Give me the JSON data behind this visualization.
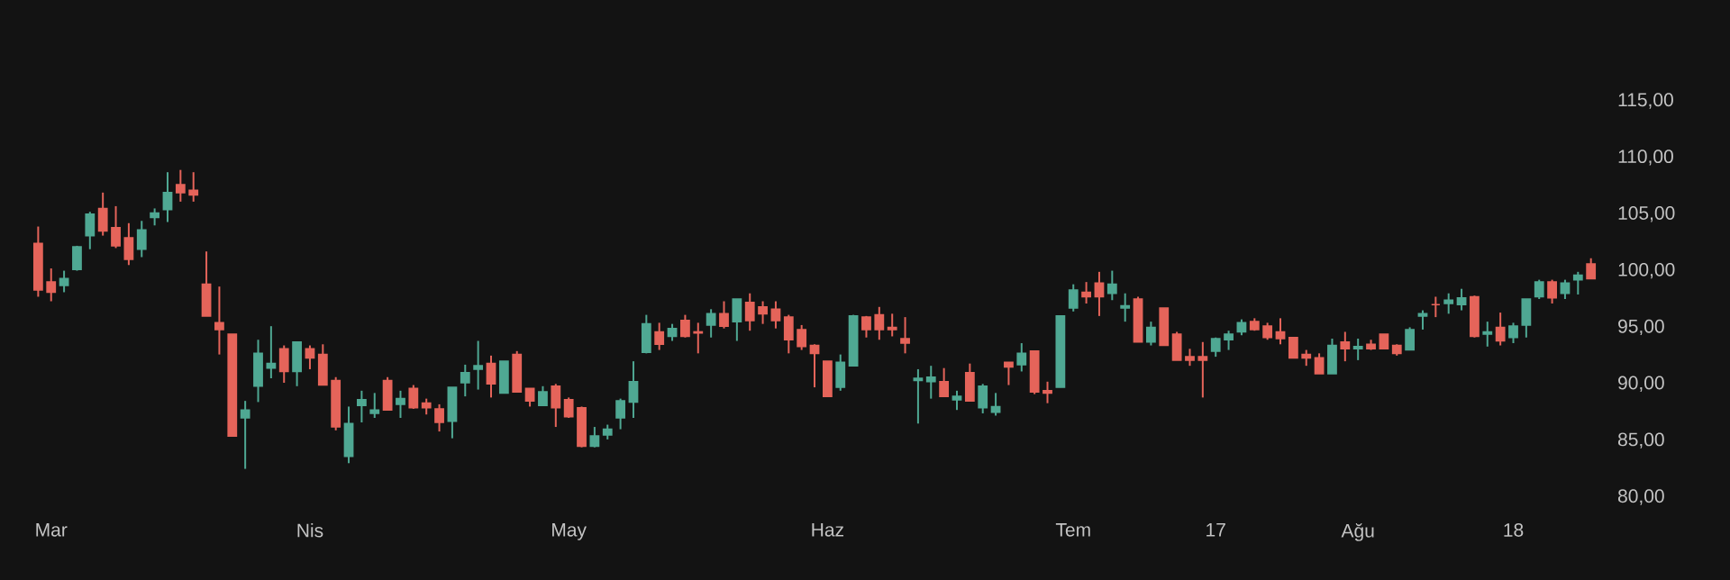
{
  "chart_data": {
    "type": "candlestick",
    "categories": [
      null,
      "Mar",
      null,
      null,
      null,
      null,
      null,
      null,
      null,
      null,
      null,
      null,
      null,
      null,
      null,
      null,
      null,
      null,
      null,
      null,
      null,
      "Nis",
      null,
      null,
      null,
      null,
      null,
      null,
      null,
      null,
      null,
      null,
      null,
      null,
      null,
      null,
      null,
      null,
      null,
      null,
      null,
      "May",
      null,
      null,
      null,
      null,
      null,
      null,
      null,
      null,
      null,
      null,
      null,
      null,
      null,
      null,
      null,
      null,
      null,
      null,
      null,
      "Haz",
      null,
      null,
      null,
      null,
      null,
      null,
      null,
      null,
      null,
      null,
      null,
      null,
      null,
      null,
      null,
      null,
      null,
      null,
      "Tem",
      null,
      null,
      null,
      null,
      null,
      null,
      null,
      null,
      null,
      null,
      "17",
      null,
      null,
      null,
      null,
      null,
      null,
      null,
      null,
      null,
      null,
      "Ağu",
      null,
      null,
      null,
      null,
      null,
      null,
      null,
      null,
      null,
      null,
      null,
      "18",
      null,
      null,
      null,
      null,
      null,
      null
    ],
    "ohlc": [
      [
        102.4,
        103.9,
        97.7,
        98.3
      ],
      [
        99.0,
        100.2,
        97.3,
        98.1
      ],
      [
        98.7,
        100.0,
        98.1,
        99.3
      ],
      [
        100.1,
        102.2,
        100.0,
        102.1
      ],
      [
        103.1,
        105.2,
        101.9,
        105.0
      ],
      [
        105.5,
        106.9,
        103.1,
        103.5
      ],
      [
        103.8,
        105.7,
        102.0,
        102.2
      ],
      [
        102.9,
        104.2,
        100.5,
        101.0
      ],
      [
        101.9,
        104.4,
        101.2,
        103.6
      ],
      [
        104.7,
        105.5,
        104.0,
        105.1
      ],
      [
        105.4,
        108.7,
        104.3,
        106.9
      ],
      [
        107.6,
        108.9,
        106.1,
        106.9
      ],
      [
        107.1,
        108.7,
        106.1,
        106.7
      ],
      [
        98.8,
        101.7,
        96.0,
        96.0
      ],
      [
        95.4,
        98.6,
        92.6,
        94.8
      ],
      [
        94.4,
        94.4,
        85.4,
        85.4
      ],
      [
        87.0,
        88.5,
        82.5,
        87.7
      ],
      [
        89.8,
        93.9,
        88.4,
        92.7
      ],
      [
        91.4,
        95.1,
        90.5,
        91.8
      ],
      [
        93.1,
        93.4,
        90.1,
        91.1
      ],
      [
        91.1,
        93.7,
        89.8,
        93.7
      ],
      [
        93.1,
        93.4,
        91.3,
        92.3
      ],
      [
        92.6,
        93.5,
        89.9,
        89.9
      ],
      [
        90.3,
        90.6,
        85.9,
        86.2
      ],
      [
        83.6,
        88.0,
        83.0,
        86.5
      ],
      [
        88.1,
        89.4,
        86.6,
        88.6
      ],
      [
        87.4,
        89.2,
        87.0,
        87.7
      ],
      [
        90.3,
        90.6,
        87.7,
        87.7
      ],
      [
        88.2,
        89.4,
        87.0,
        88.7
      ],
      [
        89.6,
        89.9,
        87.8,
        87.9
      ],
      [
        88.3,
        88.7,
        87.3,
        87.9
      ],
      [
        87.8,
        88.2,
        85.8,
        86.6
      ],
      [
        86.7,
        89.7,
        85.2,
        89.7
      ],
      [
        90.1,
        91.7,
        88.9,
        91.0
      ],
      [
        91.3,
        93.8,
        89.5,
        91.6
      ],
      [
        91.8,
        92.5,
        88.8,
        90.0
      ],
      [
        89.2,
        92.0,
        89.2,
        92.0
      ],
      [
        92.6,
        92.9,
        89.3,
        89.3
      ],
      [
        89.6,
        89.6,
        88.0,
        88.5
      ],
      [
        88.1,
        89.8,
        88.1,
        89.3
      ],
      [
        89.8,
        90.0,
        86.2,
        87.9
      ],
      [
        88.6,
        88.8,
        87.0,
        87.1
      ],
      [
        87.9,
        88.0,
        84.4,
        84.5
      ],
      [
        84.5,
        86.2,
        84.4,
        85.4
      ],
      [
        85.5,
        86.4,
        85.1,
        86.0
      ],
      [
        87.0,
        88.7,
        86.0,
        88.5
      ],
      [
        88.4,
        92.0,
        87.0,
        90.2
      ],
      [
        92.8,
        96.1,
        92.7,
        95.3
      ],
      [
        94.6,
        95.4,
        93.0,
        93.5
      ],
      [
        94.2,
        95.3,
        93.8,
        94.9
      ],
      [
        95.6,
        96.1,
        94.1,
        94.2
      ],
      [
        94.6,
        95.4,
        92.7,
        94.5
      ],
      [
        95.2,
        96.6,
        94.1,
        96.2
      ],
      [
        96.2,
        97.3,
        94.9,
        95.1
      ],
      [
        95.5,
        97.5,
        93.8,
        97.5
      ],
      [
        97.2,
        98.0,
        94.7,
        95.6
      ],
      [
        96.8,
        97.3,
        95.3,
        96.2
      ],
      [
        96.6,
        97.3,
        94.9,
        95.6
      ],
      [
        95.9,
        96.1,
        92.7,
        93.9
      ],
      [
        94.8,
        95.2,
        93.0,
        93.3
      ],
      [
        93.4,
        93.5,
        89.7,
        92.7
      ],
      [
        92.0,
        92.0,
        88.9,
        88.9
      ],
      [
        89.7,
        92.6,
        89.4,
        91.9
      ],
      [
        91.6,
        96.1,
        91.6,
        96.0
      ],
      [
        95.9,
        96.0,
        94.1,
        94.8
      ],
      [
        96.1,
        96.8,
        93.9,
        94.8
      ],
      [
        95.0,
        96.2,
        94.2,
        94.8
      ],
      [
        94.0,
        95.9,
        92.7,
        93.6
      ],
      [
        90.3,
        91.3,
        86.5,
        90.5
      ],
      [
        90.2,
        91.6,
        88.7,
        90.6
      ],
      [
        90.2,
        91.4,
        88.9,
        88.9
      ],
      [
        88.6,
        89.4,
        87.7,
        88.9
      ],
      [
        91.0,
        91.8,
        88.5,
        88.5
      ],
      [
        87.9,
        90.0,
        87.4,
        89.8
      ],
      [
        87.5,
        89.2,
        87.2,
        88.0
      ],
      [
        91.9,
        91.9,
        89.9,
        91.5
      ],
      [
        91.7,
        93.6,
        91.1,
        92.7
      ],
      [
        92.9,
        92.9,
        89.1,
        89.3
      ],
      [
        89.4,
        90.2,
        88.3,
        89.2
      ],
      [
        89.7,
        96.0,
        89.7,
        96.0
      ],
      [
        96.7,
        98.8,
        96.4,
        98.3
      ],
      [
        98.1,
        99.0,
        97.1,
        97.7
      ],
      [
        98.9,
        99.9,
        96.0,
        97.7
      ],
      [
        98.0,
        100.0,
        97.4,
        98.8
      ],
      [
        96.7,
        98.0,
        95.5,
        96.9
      ],
      [
        97.5,
        97.7,
        93.7,
        93.7
      ],
      [
        93.7,
        95.5,
        93.4,
        95.0
      ],
      [
        96.7,
        96.7,
        93.4,
        93.4
      ],
      [
        94.4,
        94.6,
        92.1,
        92.1
      ],
      [
        92.4,
        93.1,
        91.6,
        92.1
      ],
      [
        92.4,
        93.7,
        88.8,
        92.1
      ],
      [
        92.9,
        94.1,
        92.4,
        94.0
      ],
      [
        93.9,
        94.7,
        93.0,
        94.4
      ],
      [
        94.6,
        95.7,
        94.3,
        95.4
      ],
      [
        95.5,
        95.8,
        94.7,
        94.8
      ],
      [
        95.1,
        95.4,
        93.9,
        94.1
      ],
      [
        94.6,
        95.8,
        93.5,
        94.0
      ],
      [
        94.1,
        94.1,
        92.3,
        92.3
      ],
      [
        92.6,
        93.0,
        91.6,
        92.3
      ],
      [
        92.3,
        92.7,
        90.9,
        90.9
      ],
      [
        90.9,
        94.0,
        90.9,
        93.4
      ],
      [
        93.7,
        94.6,
        92.0,
        93.1
      ],
      [
        93.1,
        94.0,
        92.1,
        93.3
      ],
      [
        93.5,
        93.9,
        93.0,
        93.1
      ],
      [
        94.4,
        94.4,
        93.1,
        93.1
      ],
      [
        93.4,
        93.5,
        92.5,
        92.7
      ],
      [
        93.0,
        95.0,
        93.0,
        94.8
      ],
      [
        96.0,
        96.5,
        94.8,
        96.2
      ],
      [
        97.0,
        97.7,
        95.9,
        97.0
      ],
      [
        97.1,
        98.0,
        96.2,
        97.4
      ],
      [
        97.0,
        98.4,
        96.5,
        97.6
      ],
      [
        97.7,
        97.8,
        94.1,
        94.2
      ],
      [
        94.4,
        95.5,
        93.3,
        94.6
      ],
      [
        95.0,
        96.3,
        93.4,
        93.8
      ],
      [
        94.1,
        95.4,
        93.6,
        95.1
      ],
      [
        95.2,
        97.5,
        94.1,
        97.5
      ],
      [
        97.7,
        99.2,
        97.5,
        99.0
      ],
      [
        99.0,
        99.2,
        97.1,
        97.6
      ],
      [
        98.0,
        99.2,
        97.5,
        98.9
      ],
      [
        99.2,
        99.9,
        97.9,
        99.6
      ],
      [
        100.6,
        101.1,
        99.3,
        99.3
      ]
    ],
    "colors": [
      "#e5645a",
      "#e5645a",
      "#4fa893",
      "#4fa893",
      "#4fa893",
      "#e5645a",
      "#e5645a",
      "#e5645a",
      "#4fa893",
      "#4fa893",
      "#4fa893",
      "#e5645a",
      "#e5645a",
      "#e5645a",
      "#e5645a",
      "#e5645a",
      "#4fa893",
      "#4fa893",
      "#4fa893",
      "#e5645a",
      "#4fa893",
      "#e5645a",
      "#e5645a",
      "#e5645a",
      "#4fa893",
      "#4fa893",
      "#4fa893",
      "#e5645a",
      "#4fa893",
      "#e5645a",
      "#e5645a",
      "#e5645a",
      "#4fa893",
      "#4fa893",
      "#4fa893",
      "#e5645a",
      "#4fa893",
      "#e5645a",
      "#e5645a",
      "#4fa893",
      "#e5645a",
      "#e5645a",
      "#e5645a",
      "#4fa893",
      "#4fa893",
      "#4fa893",
      "#4fa893",
      "#4fa893",
      "#e5645a",
      "#4fa893",
      "#e5645a",
      "#e5645a",
      "#4fa893",
      "#e5645a",
      "#4fa893",
      "#e5645a",
      "#e5645a",
      "#e5645a",
      "#e5645a",
      "#e5645a",
      "#e5645a",
      "#e5645a",
      "#4fa893",
      "#4fa893",
      "#e5645a",
      "#e5645a",
      "#e5645a",
      "#e5645a",
      "#4fa893",
      "#4fa893",
      "#e5645a",
      "#4fa893",
      "#e5645a",
      "#4fa893",
      "#4fa893",
      "#e5645a",
      "#4fa893",
      "#e5645a",
      "#e5645a",
      "#4fa893",
      "#4fa893",
      "#e5645a",
      "#e5645a",
      "#4fa893",
      "#4fa893",
      "#e5645a",
      "#4fa893",
      "#e5645a",
      "#e5645a",
      "#e5645a",
      "#e5645a",
      "#4fa893",
      "#4fa893",
      "#4fa893",
      "#e5645a",
      "#e5645a",
      "#e5645a",
      "#e5645a",
      "#e5645a",
      "#e5645a",
      "#4fa893",
      "#e5645a",
      "#4fa893",
      "#e5645a",
      "#e5645a",
      "#e5645a",
      "#4fa893",
      "#4fa893",
      "#e5645a",
      "#4fa893",
      "#4fa893",
      "#e5645a",
      "#4fa893",
      "#e5645a",
      "#4fa893",
      "#4fa893",
      "#4fa893",
      "#e5645a",
      "#4fa893",
      "#4fa893",
      "#e5645a"
    ],
    "ylim": [
      80,
      115
    ],
    "yticks": [
      {
        "value": 80,
        "label": "80,00"
      },
      {
        "value": 85,
        "label": "85,00"
      },
      {
        "value": 90,
        "label": "90,00"
      },
      {
        "value": 95,
        "label": "95,00"
      },
      {
        "value": 100,
        "label": "100,00"
      },
      {
        "value": 105,
        "label": "105,00"
      },
      {
        "value": 110,
        "label": "110,00"
      },
      {
        "value": 115,
        "label": "115,00"
      }
    ]
  }
}
